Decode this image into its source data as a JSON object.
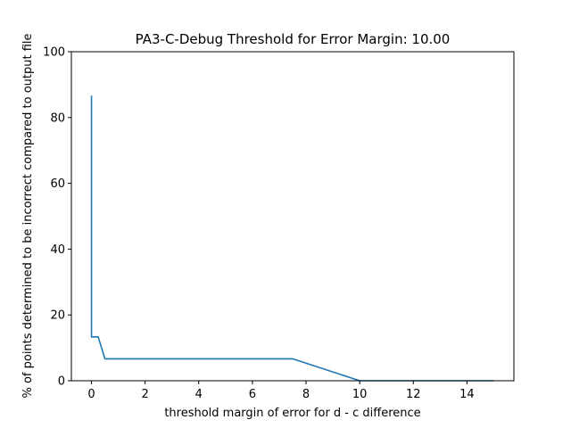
{
  "chart_data": {
    "type": "line",
    "title": "PA3-C-Debug Threshold for Error Margin: 10.00",
    "xlabel": "threshold margin of error for d - c difference",
    "ylabel": "% of points determined to be incorrect compared to output file",
    "xlim": [
      -0.75,
      15.75
    ],
    "ylim": [
      0,
      100
    ],
    "x_ticks": [
      0,
      2,
      4,
      6,
      8,
      10,
      12,
      14
    ],
    "y_ticks": [
      0,
      20,
      40,
      60,
      80,
      100
    ],
    "grid": false,
    "legend": "none",
    "series": [
      {
        "color": "#1f77b4",
        "points": [
          [
            0.0,
            86.67
          ],
          [
            0.0,
            13.33
          ],
          [
            0.25,
            13.33
          ],
          [
            0.5,
            6.67
          ],
          [
            7.5,
            6.67
          ],
          [
            10.0,
            0.0
          ],
          [
            15.0,
            0.0
          ]
        ]
      }
    ]
  }
}
